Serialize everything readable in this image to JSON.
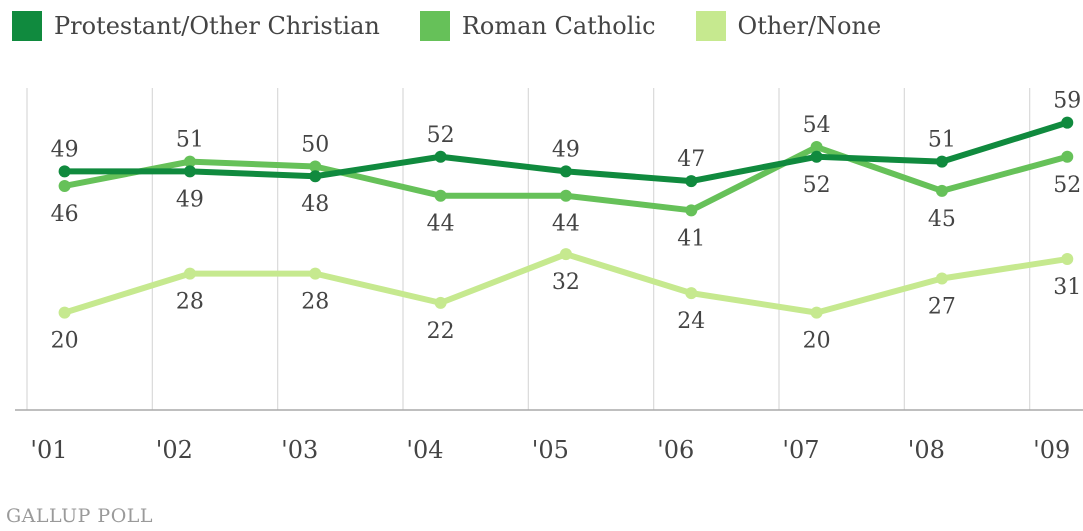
{
  "chart_data": {
    "type": "line",
    "categories": [
      "'01",
      "'02",
      "'03",
      "'04",
      "'05",
      "'06",
      "'07",
      "'08",
      "'09"
    ],
    "x_positions": [
      2001.3,
      2002.3,
      2003.3,
      2004.3,
      2005.3,
      2006.3,
      2007.3,
      2008.3,
      2009.3
    ],
    "series": [
      {
        "name": "Protestant/Other Christian",
        "color": "#108a3e",
        "values": [
          49,
          49,
          48,
          52,
          49,
          47,
          52,
          51,
          59
        ],
        "labels": [
          "49",
          "49",
          "48",
          "52",
          "49",
          "47",
          "52",
          "51",
          "59"
        ]
      },
      {
        "name": "Roman Catholic",
        "color": "#66c159",
        "values": [
          46,
          51,
          50,
          44,
          44,
          41,
          54,
          45,
          52
        ],
        "labels": [
          "46",
          "51",
          "50",
          "44",
          "44",
          "41",
          "54",
          "45",
          "52"
        ]
      },
      {
        "name": "Other/None",
        "color": "#c6e98f",
        "values": [
          20,
          28,
          28,
          22,
          32,
          24,
          20,
          27,
          31
        ],
        "labels": [
          "20",
          "28",
          "28",
          "22",
          "32",
          "24",
          "20",
          "27",
          "31"
        ]
      }
    ],
    "grid": true,
    "legend_position": "top-left",
    "title": "",
    "xlabel": "",
    "ylabel": ""
  },
  "footer": {
    "source": "GALLUP POLL"
  }
}
